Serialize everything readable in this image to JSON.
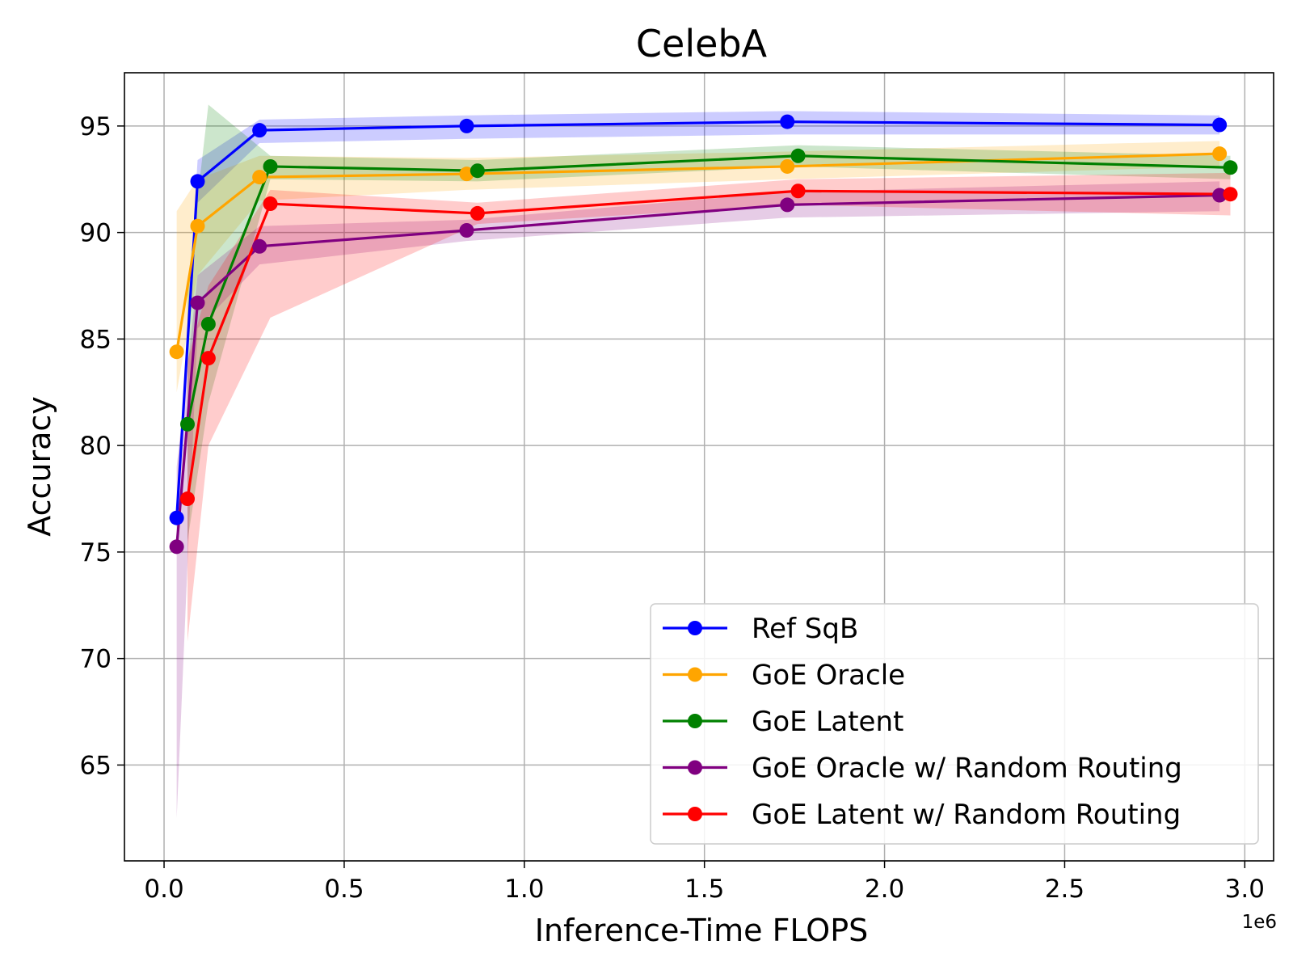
{
  "chart_data": {
    "type": "line",
    "title": "CelebA",
    "xlabel": "Inference-Time FLOPS",
    "ylabel": "Accuracy",
    "x_offset_label": "1e6",
    "xlim": [
      -0.11,
      3.08
    ],
    "ylim": [
      60.5,
      97.5
    ],
    "x_ticks": [
      0.0,
      0.5,
      1.0,
      1.5,
      2.0,
      2.5,
      3.0
    ],
    "x_tick_labels": [
      "0.0",
      "0.5",
      "1.0",
      "1.5",
      "2.0",
      "2.5",
      "3.0"
    ],
    "y_ticks": [
      65,
      70,
      75,
      80,
      85,
      90,
      95
    ],
    "y_tick_labels": [
      "65",
      "70",
      "75",
      "80",
      "85",
      "90",
      "95"
    ],
    "grid": true,
    "legend_position": "bottom-right",
    "series": [
      {
        "name": "Ref SqB",
        "color": "#0000ff",
        "x": [
          0.035,
          0.093,
          0.265,
          0.84,
          1.73,
          2.93
        ],
        "y": [
          76.6,
          92.4,
          94.8,
          95.0,
          95.2,
          95.05
        ],
        "lower": [
          76.0,
          91.4,
          94.2,
          94.4,
          94.6,
          94.6
        ],
        "upper": [
          77.2,
          93.4,
          95.3,
          95.5,
          95.7,
          95.5
        ]
      },
      {
        "name": "GoE Oracle",
        "color": "#ffa500",
        "x": [
          0.035,
          0.093,
          0.265,
          0.84,
          1.73,
          2.93
        ],
        "y": [
          84.4,
          90.3,
          92.6,
          92.75,
          93.1,
          93.7
        ],
        "lower": [
          82.5,
          88.0,
          91.5,
          92.0,
          92.5,
          93.1
        ],
        "upper": [
          91.0,
          92.5,
          93.6,
          93.5,
          93.8,
          94.3
        ]
      },
      {
        "name": "GoE Latent",
        "color": "#008000",
        "x": [
          0.065,
          0.123,
          0.295,
          0.87,
          1.76,
          2.96
        ],
        "y": [
          81.0,
          85.7,
          93.1,
          92.9,
          93.6,
          93.05
        ],
        "lower": [
          75.5,
          82.0,
          92.5,
          92.4,
          93.1,
          92.5
        ],
        "upper": [
          87.5,
          96.0,
          93.6,
          93.4,
          94.1,
          93.6
        ]
      },
      {
        "name": "GoE Oracle w/ Random Routing",
        "color": "#800080",
        "x": [
          0.035,
          0.093,
          0.265,
          0.84,
          1.73,
          2.93
        ],
        "y": [
          75.25,
          86.7,
          89.35,
          90.1,
          91.3,
          91.75
        ],
        "lower": [
          62.5,
          85.5,
          88.5,
          89.6,
          90.7,
          91.0
        ],
        "upper": [
          79.0,
          88.0,
          90.3,
          90.6,
          91.9,
          92.4
        ]
      },
      {
        "name": "GoE Latent w/ Random Routing",
        "color": "#ff0000",
        "x": [
          0.065,
          0.123,
          0.295,
          0.87,
          1.76,
          2.96
        ],
        "y": [
          77.5,
          84.1,
          91.35,
          90.9,
          91.95,
          91.8
        ],
        "lower": [
          70.8,
          80.0,
          86.0,
          90.4,
          91.3,
          90.8
        ],
        "upper": [
          84.0,
          87.5,
          92.0,
          91.4,
          92.5,
          92.8
        ]
      }
    ]
  }
}
